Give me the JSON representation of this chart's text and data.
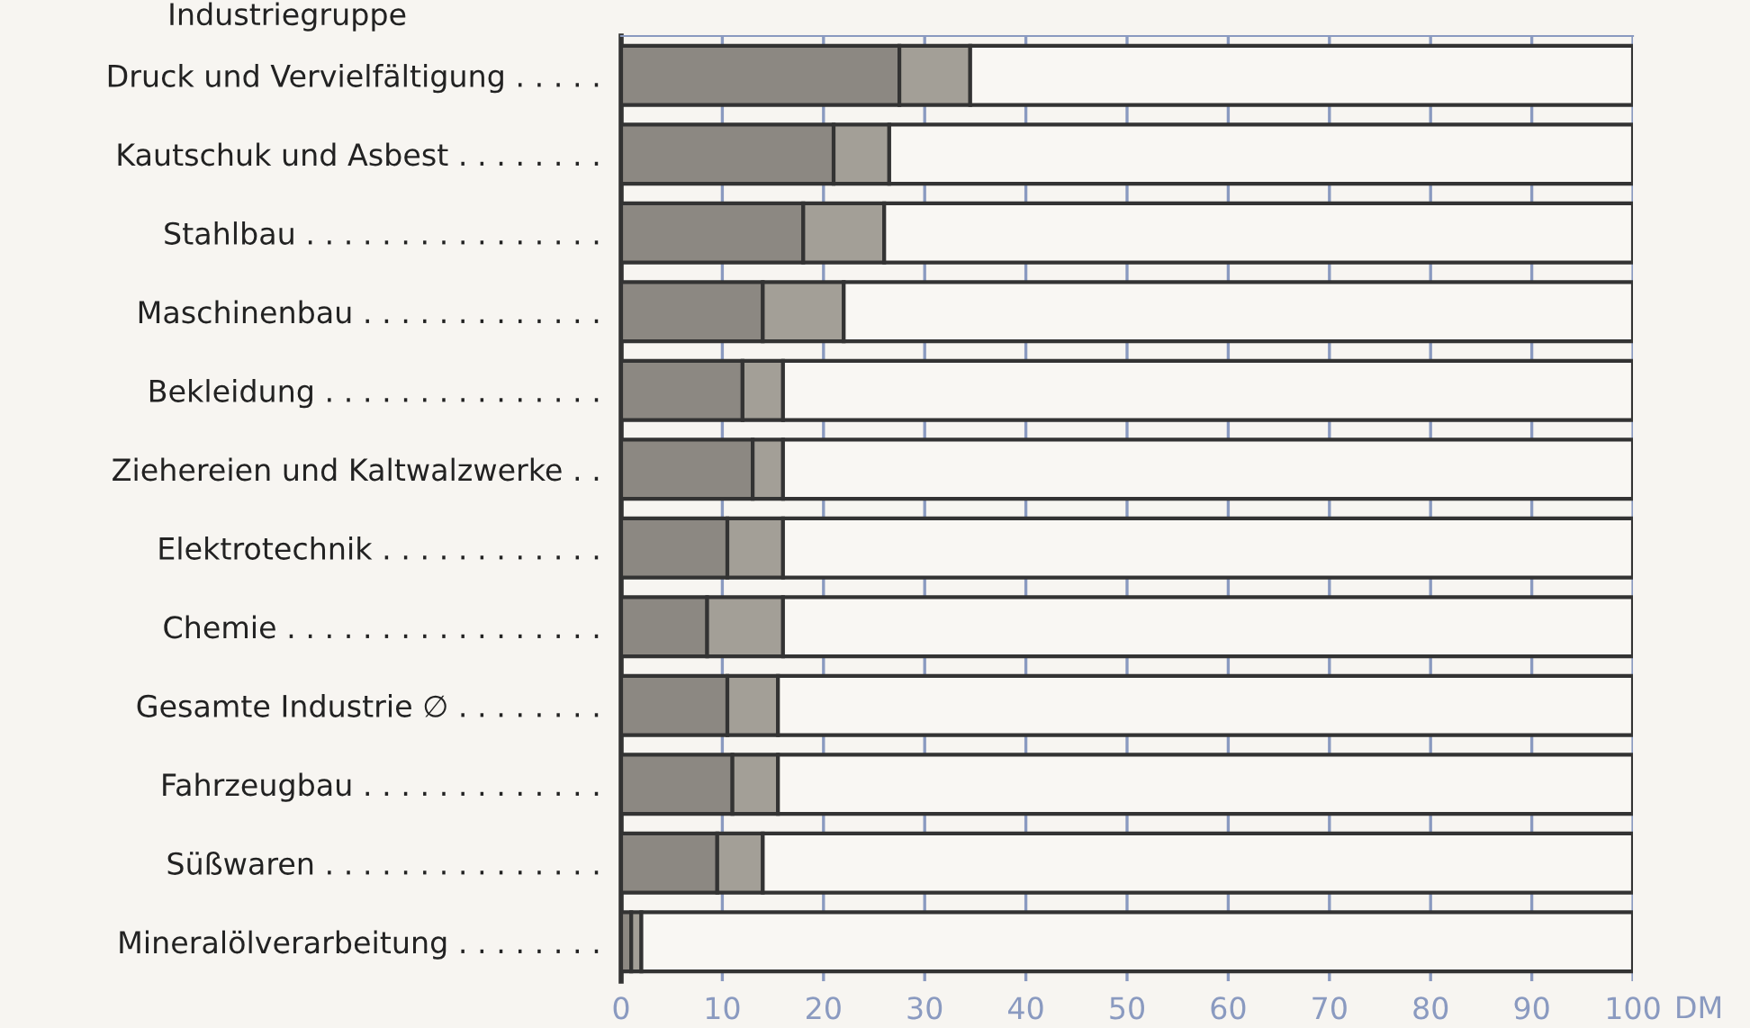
{
  "chart_data": {
    "type": "bar",
    "orientation": "horizontal",
    "stacked": true,
    "ylabel": "Industriegruppe",
    "xlabel": "DM",
    "categories": [
      "Druck und Vervielfältigung . . . . .",
      "Kautschuk und Asbest . . . . . . . .",
      "Stahlbau . . . . . . . . . . . . . . . .",
      "Maschinenbau . . . . . . . . . . . . .",
      "Bekleidung . . . . . . . . . . . . . . .",
      "Ziehereien und Kaltwalzwerke . .",
      "Elektrotechnik . . . . . . . . . . . .",
      "Chemie . . . . . . . . . . . . . . . . .",
      "Gesamte Industrie ∅ . . . . . . . .",
      "Fahrzeugbau . . . . . . . . . . . . .",
      "Süßwaren . . . . . . . . . . . . . . .",
      "Mineralölverarbeitung . . . . . . . ."
    ],
    "series": [
      {
        "color": "#8c8882",
        "values": [
          27.5,
          21,
          18,
          14,
          12,
          13,
          10.5,
          8.5,
          10.5,
          11,
          9.5,
          1
        ]
      },
      {
        "color": "#a39f97",
        "values": [
          7,
          5.5,
          8,
          8,
          4,
          3,
          5.5,
          7.5,
          5,
          4.5,
          4.5,
          1
        ]
      },
      {
        "color": "#f9f7f3",
        "values": [
          65.5,
          73.5,
          74,
          78,
          84,
          84,
          84,
          84,
          84.5,
          84.5,
          86,
          98
        ]
      }
    ],
    "xlim": [
      0,
      100
    ],
    "xticks": [
      0,
      10,
      20,
      30,
      40,
      50,
      60,
      70,
      80,
      90,
      100
    ],
    "grid": "x"
  }
}
